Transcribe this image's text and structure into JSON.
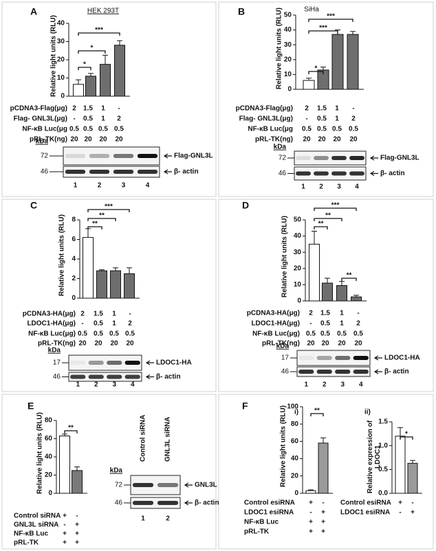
{
  "chart_data": [
    {
      "type": "bar",
      "panel": "A",
      "title": "HEK 293T",
      "y_label": "Relative light units (RLU)",
      "values": [
        6.5,
        11,
        17.5,
        28
      ],
      "errors": [
        2.5,
        1.5,
        5,
        2.5
      ],
      "colors": [
        "#ffffff",
        "#6e6e6e",
        "#6e6e6e",
        "#6e6e6e"
      ],
      "ylim": [
        0,
        40
      ],
      "yticks": [
        0,
        10,
        20,
        30,
        40
      ],
      "annotations": [
        "*",
        "*",
        "***"
      ],
      "treatments": [
        {
          "label": "pCDNA3-Flag(μg)",
          "cells": [
            2,
            1.5,
            1,
            "-"
          ]
        },
        {
          "label": "Flag- GNL3L(μg)",
          "cells": [
            "-",
            0.5,
            1,
            2
          ]
        },
        {
          "label": "NF-κB Luc(μg",
          "cells": [
            0.5,
            0.5,
            0.5,
            0.5
          ]
        },
        {
          "label": "pRL-TK(ng)",
          "cells": [
            20,
            20,
            20,
            20
          ]
        }
      ],
      "blot": {
        "unit": "kDa",
        "markers": [
          72,
          46
        ],
        "bands": [
          "Flag-GNL3L",
          "β- actin"
        ],
        "lanes": [
          1,
          2,
          3,
          4
        ]
      }
    },
    {
      "type": "bar",
      "panel": "B",
      "title": "SiHa",
      "y_label": "Relative light units (RLU)",
      "values": [
        6,
        13,
        37,
        37
      ],
      "errors": [
        1.5,
        2,
        3,
        2
      ],
      "colors": [
        "#ffffff",
        "#6e6e6e",
        "#6e6e6e",
        "#6e6e6e"
      ],
      "ylim": [
        0,
        50
      ],
      "yticks": [
        0,
        10,
        20,
        30,
        40,
        50
      ],
      "annotations": [
        "*",
        "***",
        "***"
      ],
      "treatments": [
        {
          "label": "pCDNA3-Flag(μg)",
          "cells": [
            2,
            1.5,
            1,
            "-"
          ]
        },
        {
          "label": "Flag- GNL3L(μg)",
          "cells": [
            "-",
            0.5,
            1,
            2
          ]
        },
        {
          "label": "NF-κB Luc(μg",
          "cells": [
            0.5,
            0.5,
            0.5,
            0.5
          ]
        },
        {
          "label": "pRL-TK(ng)",
          "cells": [
            20,
            20,
            20,
            20
          ]
        }
      ],
      "blot": {
        "unit": "kDa",
        "markers": [
          72,
          46
        ],
        "bands": [
          "Flag-GNL3L",
          "β- actin"
        ],
        "lanes": [
          1,
          2,
          3,
          4
        ]
      }
    },
    {
      "type": "bar",
      "panel": "C",
      "y_label": "Relative light units (RLU)",
      "values": [
        6.2,
        2.8,
        2.8,
        2.5
      ],
      "errors": [
        0.9,
        0.1,
        0.3,
        0.6
      ],
      "colors": [
        "#ffffff",
        "#6e6e6e",
        "#6e6e6e",
        "#6e6e6e"
      ],
      "ylim": [
        0,
        8
      ],
      "yticks": [
        0,
        2,
        4,
        6,
        8
      ],
      "annotations": [
        "**",
        "**",
        "***"
      ],
      "treatments": [
        {
          "label": "pCDNA3-HA(μg)",
          "cells": [
            2,
            1.5,
            1,
            "-"
          ]
        },
        {
          "label": "LDOC1-HA(μg)",
          "cells": [
            "-",
            0.5,
            1,
            2
          ]
        },
        {
          "label": "NF-κB Luc(μg)",
          "cells": [
            0.5,
            0.5,
            0.5,
            0.5
          ]
        },
        {
          "label": "pRL-TK(ng)",
          "cells": [
            20,
            20,
            20,
            20
          ]
        }
      ],
      "blot": {
        "unit": "kDa",
        "markers": [
          17,
          46
        ],
        "bands": [
          "LDOC1-HA",
          "β- actin"
        ],
        "lanes": [
          1,
          2,
          3,
          4
        ]
      }
    },
    {
      "type": "bar",
      "panel": "D",
      "y_label": "Relative light units (RLU)",
      "values": [
        35,
        11,
        9.5,
        2.5
      ],
      "errors": [
        8,
        3,
        2.5,
        1
      ],
      "colors": [
        "#ffffff",
        "#6e6e6e",
        "#6e6e6e",
        "#6e6e6e"
      ],
      "ylim": [
        0,
        50
      ],
      "yticks": [
        0,
        10,
        20,
        30,
        40,
        50
      ],
      "annotations": [
        "**",
        "**",
        "***",
        "**"
      ],
      "treatments": [
        {
          "label": "pCDNA3-HA(μg)",
          "cells": [
            2,
            1.5,
            1,
            "-"
          ]
        },
        {
          "label": "LDOC1-HA(μg)",
          "cells": [
            "-",
            0.5,
            1,
            2
          ]
        },
        {
          "label": "NF-κB Luc(μg)",
          "cells": [
            0.5,
            0.5,
            0.5,
            0.5
          ]
        },
        {
          "label": "pRL-TK(ng)",
          "cells": [
            20,
            20,
            20,
            20
          ]
        }
      ],
      "blot": {
        "unit": "kDa",
        "markers": [
          17,
          46
        ],
        "bands": [
          "LDOC1-HA",
          "β- actin"
        ],
        "lanes": [
          1,
          2,
          3,
          4
        ]
      }
    },
    {
      "type": "bar",
      "panel": "E",
      "y_label": "Relative light units (RLU)",
      "values": [
        63,
        25
      ],
      "errors": [
        2,
        4
      ],
      "colors": [
        "#ffffff",
        "#7a7a7a"
      ],
      "ylim": [
        0,
        80
      ],
      "yticks": [
        0,
        20,
        40,
        60,
        80
      ],
      "annotations": [
        "**"
      ],
      "treatments": [
        {
          "label": "Control siRNA",
          "cells": [
            "+",
            "-"
          ]
        },
        {
          "label": "GNL3L  siRNA",
          "cells": [
            "-",
            "+"
          ]
        },
        {
          "label": "NF-κB Luc",
          "cells": [
            "+",
            "+"
          ]
        },
        {
          "label": "pRL-TK",
          "cells": [
            "+",
            "+"
          ]
        }
      ],
      "blot": {
        "unit": "kDa",
        "markers": [
          72,
          46
        ],
        "bands": [
          "GNL3L",
          "β- actin"
        ],
        "lanes": [
          1,
          2
        ],
        "lane_labels": [
          "Control siRNA",
          "GNL3L  siRNA"
        ]
      }
    },
    {
      "type": "bar",
      "panel": "F",
      "subtitle": "i)",
      "y_label": "Relative light units (RLU)",
      "values": [
        3,
        58
      ],
      "errors": [
        1,
        6
      ],
      "colors": [
        "#ffffff",
        "#9a9a9a"
      ],
      "ylim": [
        0,
        100
      ],
      "yticks": [
        0,
        20,
        40,
        60,
        80,
        100
      ],
      "annotations": [
        "**"
      ],
      "treatments": [
        {
          "label": "Control esiRNA",
          "cells": [
            "+",
            "-"
          ]
        },
        {
          "label": "LDOC1 esiRNA",
          "cells": [
            "-",
            "+"
          ]
        },
        {
          "label": "NF-κB Luc",
          "cells": [
            "+",
            "+"
          ]
        },
        {
          "label": "pRL-TK",
          "cells": [
            "+",
            "+"
          ]
        }
      ]
    },
    {
      "type": "bar",
      "subtitle": "ii)",
      "y_label": "Relative expression of LDOC1",
      "values": [
        1.2,
        0.63
      ],
      "errors": [
        0.18,
        0.06
      ],
      "colors": [
        "#ffffff",
        "#9a9a9a"
      ],
      "ylim": [
        0,
        1.5
      ],
      "yticks": [
        {
          "value": 0,
          "label": "0.0"
        },
        0.5,
        {
          "value": 1,
          "label": "1.0"
        },
        1.5
      ],
      "annotations": [
        "*"
      ],
      "treatments": [
        {
          "label": "Control esiRNA",
          "cells": [
            "+",
            "-"
          ]
        },
        {
          "label": "LDOC1 esiRNA",
          "cells": [
            "-",
            "+"
          ]
        }
      ]
    }
  ]
}
